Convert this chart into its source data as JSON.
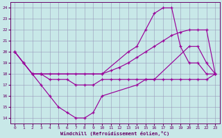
{
  "background_color": "#c8e8e8",
  "line_color": "#990099",
  "xlabel": "Windchill (Refroidissement éolien,°C)",
  "xlim": [
    -0.5,
    23.5
  ],
  "ylim": [
    13.5,
    24.5
  ],
  "xticks": [
    0,
    1,
    2,
    3,
    4,
    5,
    6,
    7,
    8,
    9,
    10,
    11,
    12,
    13,
    14,
    15,
    16,
    17,
    18,
    19,
    20,
    21,
    22,
    23
  ],
  "yticks": [
    14,
    15,
    16,
    17,
    18,
    19,
    20,
    21,
    22,
    23,
    24
  ],
  "curve1_x": [
    0,
    1,
    2,
    3,
    4,
    5,
    6,
    7,
    8,
    9,
    10,
    11,
    12,
    13,
    14,
    15,
    16,
    17,
    18,
    19,
    20,
    21,
    22,
    23
  ],
  "curve1_y": [
    20,
    19,
    18,
    18,
    18,
    18,
    18,
    18,
    18,
    18,
    18,
    18.3,
    18.6,
    19.0,
    19.5,
    20.0,
    20.5,
    21.0,
    21.5,
    21.8,
    22.0,
    22.0,
    22.0,
    18.0
  ],
  "curve2_x": [
    0,
    1,
    2,
    3,
    10,
    13,
    14,
    15,
    16,
    17,
    18,
    19,
    20,
    21,
    22,
    23
  ],
  "curve2_y": [
    20,
    19,
    18,
    18,
    18,
    20.0,
    20.5,
    22.0,
    23.5,
    24.0,
    24.0,
    20.5,
    19.0,
    19.0,
    18.0,
    18.0
  ],
  "curve3_x": [
    0,
    1,
    2,
    3,
    4,
    5,
    6,
    7,
    8,
    9,
    10,
    11,
    12,
    13,
    14,
    15,
    16,
    17,
    18,
    19,
    20,
    21,
    22,
    23
  ],
  "curve3_y": [
    20,
    19,
    18,
    18,
    17.5,
    17.5,
    17.5,
    17.0,
    17.0,
    17.0,
    17.5,
    17.5,
    17.5,
    17.5,
    17.5,
    17.5,
    17.5,
    17.5,
    17.5,
    17.5,
    17.5,
    17.5,
    17.5,
    18.0
  ],
  "curve4_x": [
    2,
    3,
    4,
    5,
    6,
    7,
    8,
    9,
    10,
    14,
    15,
    16,
    20,
    21,
    22,
    23
  ],
  "curve4_y": [
    18,
    17,
    16,
    15.0,
    14.5,
    14.0,
    14.0,
    14.5,
    16.0,
    17.0,
    17.5,
    17.5,
    20.5,
    20.5,
    19.0,
    18.0
  ]
}
